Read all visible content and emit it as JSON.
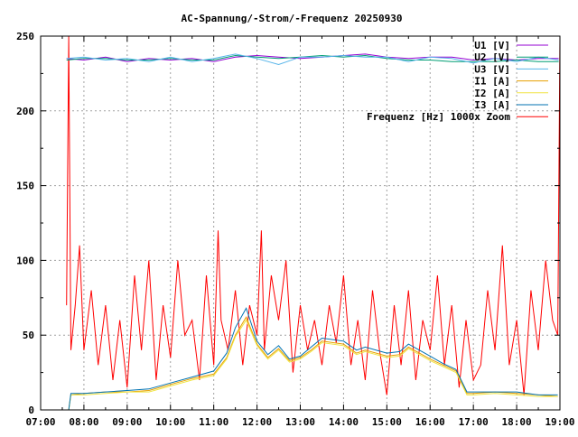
{
  "chart_data": {
    "type": "line",
    "title": "AC-Spannung/-Strom/-Frequenz 20250930",
    "xlabel": "",
    "ylabel": "",
    "xlim": [
      7,
      19
    ],
    "ylim": [
      0,
      250
    ],
    "grid": true,
    "legend_position": "top-right",
    "xticks": [
      "07:00",
      "08:00",
      "09:00",
      "10:00",
      "11:00",
      "12:00",
      "13:00",
      "14:00",
      "15:00",
      "16:00",
      "17:00",
      "18:00",
      "19:00"
    ],
    "yticks": [
      "0",
      "50",
      "100",
      "150",
      "200",
      "250"
    ],
    "series": [
      {
        "name": "U1 [V]",
        "color": "#9400d3",
        "x": [
          7.6,
          8,
          8.5,
          9,
          9.5,
          10,
          10.5,
          11,
          11.5,
          12,
          12.5,
          13,
          13.5,
          14,
          14.5,
          15,
          15.5,
          16,
          16.5,
          17,
          17.5,
          18,
          18.5,
          18.97
        ],
        "y": [
          235,
          234,
          236,
          233,
          235,
          234,
          235,
          233,
          236,
          237,
          236,
          235,
          236,
          237,
          238,
          236,
          235,
          236,
          236,
          234,
          235,
          234,
          235,
          235
        ]
      },
      {
        "name": "U2 [V]",
        "color": "#009e73",
        "x": [
          7.6,
          8,
          8.5,
          9,
          9.5,
          10,
          10.5,
          11,
          11.5,
          12,
          12.5,
          13,
          13.5,
          14,
          14.5,
          15,
          15.5,
          16,
          16.5,
          17,
          17.5,
          18,
          18.5,
          18.97
        ],
        "y": [
          234,
          235,
          235,
          234,
          234,
          235,
          234,
          234,
          237,
          236,
          235,
          236,
          237,
          236,
          237,
          235,
          234,
          234,
          233,
          233,
          233,
          234,
          233,
          233
        ]
      },
      {
        "name": "U3 [V]",
        "color": "#56b4e9",
        "x": [
          7.6,
          8,
          8.5,
          9,
          9.5,
          10,
          10.5,
          11,
          11.5,
          12,
          12.5,
          13,
          13.5,
          14,
          14.5,
          15,
          15.5,
          16,
          16.5,
          17,
          17.5,
          18,
          18.5,
          18.97
        ],
        "y": [
          235,
          236,
          234,
          235,
          233,
          236,
          233,
          235,
          238,
          235,
          231,
          236,
          236,
          237,
          236,
          236,
          233,
          236,
          235,
          232,
          235,
          233,
          236,
          234
        ]
      },
      {
        "name": "I1 [A]",
        "color": "#e69f00",
        "x": [
          7.65,
          7.7,
          8,
          8.5,
          9,
          9.5,
          10,
          10.5,
          11,
          11.3,
          11.5,
          11.75,
          12,
          12.25,
          12.5,
          12.75,
          13,
          13.25,
          13.5,
          14,
          14.3,
          14.5,
          15,
          15.3,
          15.5,
          16,
          16.3,
          16.6,
          16.85,
          17,
          17.5,
          18,
          18.5,
          18.95
        ],
        "y": [
          0,
          10,
          11,
          12,
          12,
          13,
          17,
          21,
          24,
          35,
          50,
          62,
          44,
          35,
          41,
          33,
          35,
          40,
          46,
          44,
          38,
          40,
          36,
          37,
          42,
          34,
          30,
          26,
          11,
          11,
          12,
          11,
          10,
          9
        ]
      },
      {
        "name": "I2 [A]",
        "color": "#f0e442",
        "x": [
          7.65,
          7.7,
          8,
          8.5,
          9,
          9.5,
          10,
          10.5,
          11,
          11.3,
          11.5,
          11.75,
          12,
          12.25,
          12.5,
          12.75,
          13,
          13.25,
          13.5,
          14,
          14.3,
          14.5,
          15,
          15.3,
          15.5,
          16,
          16.3,
          16.6,
          16.85,
          17,
          17.5,
          18,
          18.5,
          18.95
        ],
        "y": [
          0,
          10,
          10,
          11,
          12,
          12,
          16,
          20,
          23,
          34,
          49,
          60,
          43,
          34,
          40,
          32,
          34,
          39,
          45,
          43,
          37,
          39,
          35,
          36,
          41,
          33,
          29,
          25,
          10,
          10,
          11,
          10,
          9,
          9
        ]
      },
      {
        "name": "I3 [A]",
        "color": "#0072b2",
        "x": [
          7.65,
          7.7,
          8,
          8.5,
          9,
          9.5,
          10,
          10.5,
          11,
          11.3,
          11.5,
          11.75,
          12,
          12.25,
          12.5,
          12.75,
          13,
          13.25,
          13.5,
          14,
          14.3,
          14.5,
          15,
          15.3,
          15.5,
          16,
          16.3,
          16.6,
          16.85,
          17,
          17.5,
          18,
          18.5,
          18.95
        ],
        "y": [
          0,
          11,
          11,
          12,
          13,
          14,
          18,
          22,
          26,
          38,
          55,
          68,
          46,
          37,
          43,
          34,
          36,
          42,
          48,
          46,
          40,
          42,
          38,
          39,
          44,
          36,
          31,
          27,
          12,
          12,
          12,
          12,
          10,
          10
        ]
      },
      {
        "name": "Frequenz [Hz] 1000x Zoom",
        "color": "#ff0000",
        "x": [
          7.6,
          7.65,
          7.7,
          7.8,
          7.9,
          8,
          8.17,
          8.33,
          8.5,
          8.67,
          8.83,
          9,
          9.17,
          9.33,
          9.5,
          9.67,
          9.83,
          10,
          10.17,
          10.33,
          10.5,
          10.67,
          10.83,
          11,
          11.1,
          11.17,
          11.33,
          11.5,
          11.67,
          11.83,
          12,
          12.1,
          12.17,
          12.33,
          12.5,
          12.67,
          12.83,
          13,
          13.17,
          13.33,
          13.5,
          13.67,
          13.83,
          14,
          14.17,
          14.33,
          14.5,
          14.67,
          14.83,
          15,
          15.17,
          15.33,
          15.5,
          15.67,
          15.83,
          16,
          16.17,
          16.33,
          16.5,
          16.67,
          16.83,
          17,
          17.17,
          17.33,
          17.5,
          17.67,
          17.83,
          18,
          18.17,
          18.33,
          18.5,
          18.67,
          18.83,
          18.95,
          19.0
        ],
        "y": [
          70,
          250,
          40,
          70,
          110,
          40,
          80,
          30,
          70,
          20,
          60,
          15,
          90,
          40,
          100,
          20,
          70,
          35,
          100,
          50,
          60,
          20,
          90,
          30,
          120,
          60,
          40,
          80,
          30,
          70,
          50,
          120,
          40,
          90,
          60,
          100,
          25,
          70,
          40,
          60,
          30,
          70,
          45,
          90,
          30,
          60,
          20,
          80,
          40,
          10,
          70,
          30,
          80,
          20,
          60,
          40,
          90,
          30,
          70,
          15,
          60,
          20,
          30,
          80,
          40,
          110,
          30,
          60,
          10,
          80,
          40,
          100,
          60,
          50,
          250
        ]
      }
    ]
  }
}
